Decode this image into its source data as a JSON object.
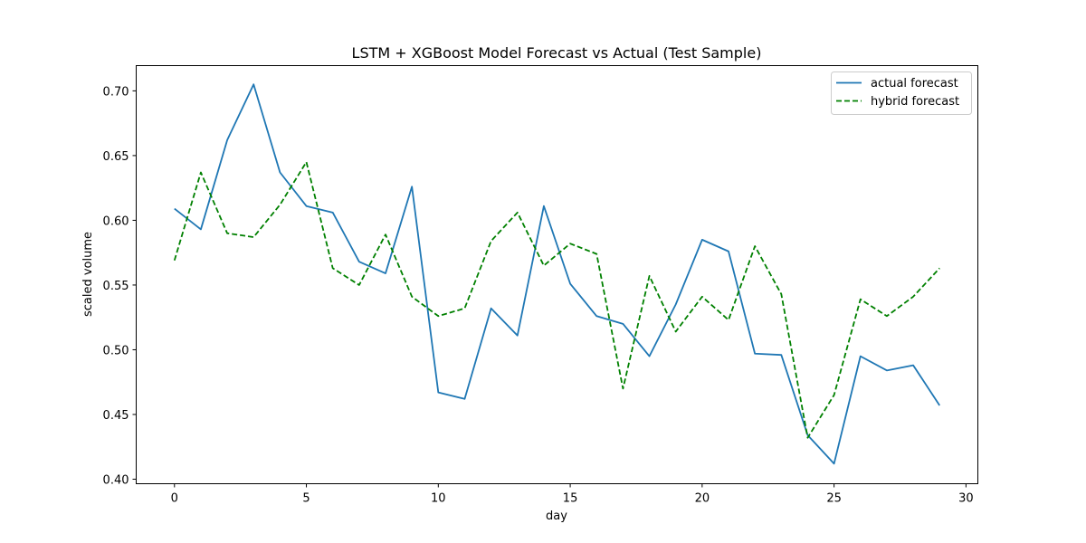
{
  "chart_data": {
    "type": "line",
    "title": "LSTM + XGBoost Model Forecast vs Actual (Test Sample)",
    "xlabel": "day",
    "ylabel": "scaled volume",
    "xlim": [
      -1.45,
      30.45
    ],
    "ylim": [
      0.3965,
      0.7195
    ],
    "xticks": [
      0,
      5,
      10,
      15,
      20,
      25,
      30
    ],
    "xtick_labels": [
      "0",
      "5",
      "10",
      "15",
      "20",
      "25",
      "30"
    ],
    "yticks": [
      0.4,
      0.45,
      0.5,
      0.55,
      0.6,
      0.65,
      0.7
    ],
    "ytick_labels": [
      "0.40",
      "0.45",
      "0.50",
      "0.55",
      "0.60",
      "0.65",
      "0.70"
    ],
    "grid": false,
    "legend_position": "top-right",
    "x": [
      0,
      1,
      2,
      3,
      4,
      5,
      6,
      7,
      8,
      9,
      10,
      11,
      12,
      13,
      14,
      15,
      16,
      17,
      18,
      19,
      20,
      21,
      22,
      23,
      24,
      25,
      26,
      27,
      28,
      29
    ],
    "series": [
      {
        "name": "actual forecast",
        "color": "#1f77b4",
        "style": "solid",
        "values": [
          0.609,
          0.593,
          0.662,
          0.705,
          0.637,
          0.611,
          0.606,
          0.568,
          0.559,
          0.626,
          0.467,
          0.462,
          0.532,
          0.511,
          0.611,
          0.551,
          0.526,
          0.52,
          0.495,
          0.535,
          0.585,
          0.576,
          0.497,
          0.496,
          0.434,
          0.412,
          0.495,
          0.484,
          0.488,
          0.457
        ]
      },
      {
        "name": "hybrid forecast",
        "color": "#008000",
        "style": "dashed",
        "values": [
          0.569,
          0.637,
          0.59,
          0.587,
          0.612,
          0.645,
          0.563,
          0.55,
          0.589,
          0.541,
          0.526,
          0.532,
          0.584,
          0.606,
          0.565,
          0.582,
          0.574,
          0.47,
          0.557,
          0.514,
          0.541,
          0.523,
          0.58,
          0.543,
          0.432,
          0.465,
          0.539,
          0.526,
          0.541,
          0.563
        ]
      }
    ]
  }
}
